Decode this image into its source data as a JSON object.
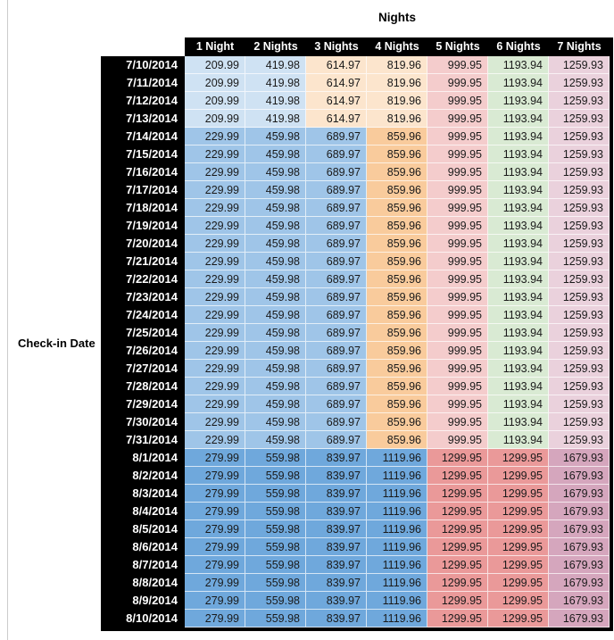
{
  "title": "Nights",
  "row_axis_label": "Check-in Date",
  "chart_data": {
    "type": "heatmap",
    "title": "Nights",
    "xlabel": "Nights",
    "ylabel": "Check-in Date",
    "legend": "none",
    "columns": [
      "1 Night",
      "2 Nights",
      "3 Nights",
      "4 Nights",
      "5 Nights",
      "6 Nights",
      "7 Nights"
    ],
    "rows": [
      {
        "date": "7/10/2014",
        "band": 0,
        "values": [
          209.99,
          419.98,
          614.97,
          819.96,
          999.95,
          1193.94,
          1259.93
        ]
      },
      {
        "date": "7/11/2014",
        "band": 0,
        "values": [
          209.99,
          419.98,
          614.97,
          819.96,
          999.95,
          1193.94,
          1259.93
        ]
      },
      {
        "date": "7/12/2014",
        "band": 0,
        "values": [
          209.99,
          419.98,
          614.97,
          819.96,
          999.95,
          1193.94,
          1259.93
        ]
      },
      {
        "date": "7/13/2014",
        "band": 0,
        "values": [
          209.99,
          419.98,
          614.97,
          819.96,
          999.95,
          1193.94,
          1259.93
        ]
      },
      {
        "date": "7/14/2014",
        "band": 1,
        "values": [
          229.99,
          459.98,
          689.97,
          859.96,
          999.95,
          1193.94,
          1259.93
        ]
      },
      {
        "date": "7/15/2014",
        "band": 1,
        "values": [
          229.99,
          459.98,
          689.97,
          859.96,
          999.95,
          1193.94,
          1259.93
        ]
      },
      {
        "date": "7/16/2014",
        "band": 1,
        "values": [
          229.99,
          459.98,
          689.97,
          859.96,
          999.95,
          1193.94,
          1259.93
        ]
      },
      {
        "date": "7/17/2014",
        "band": 1,
        "values": [
          229.99,
          459.98,
          689.97,
          859.96,
          999.95,
          1193.94,
          1259.93
        ]
      },
      {
        "date": "7/18/2014",
        "band": 1,
        "values": [
          229.99,
          459.98,
          689.97,
          859.96,
          999.95,
          1193.94,
          1259.93
        ]
      },
      {
        "date": "7/19/2014",
        "band": 1,
        "values": [
          229.99,
          459.98,
          689.97,
          859.96,
          999.95,
          1193.94,
          1259.93
        ]
      },
      {
        "date": "7/20/2014",
        "band": 1,
        "values": [
          229.99,
          459.98,
          689.97,
          859.96,
          999.95,
          1193.94,
          1259.93
        ]
      },
      {
        "date": "7/21/2014",
        "band": 1,
        "values": [
          229.99,
          459.98,
          689.97,
          859.96,
          999.95,
          1193.94,
          1259.93
        ]
      },
      {
        "date": "7/22/2014",
        "band": 1,
        "values": [
          229.99,
          459.98,
          689.97,
          859.96,
          999.95,
          1193.94,
          1259.93
        ]
      },
      {
        "date": "7/23/2014",
        "band": 1,
        "values": [
          229.99,
          459.98,
          689.97,
          859.96,
          999.95,
          1193.94,
          1259.93
        ]
      },
      {
        "date": "7/24/2014",
        "band": 1,
        "values": [
          229.99,
          459.98,
          689.97,
          859.96,
          999.95,
          1193.94,
          1259.93
        ]
      },
      {
        "date": "7/25/2014",
        "band": 1,
        "values": [
          229.99,
          459.98,
          689.97,
          859.96,
          999.95,
          1193.94,
          1259.93
        ]
      },
      {
        "date": "7/26/2014",
        "band": 1,
        "values": [
          229.99,
          459.98,
          689.97,
          859.96,
          999.95,
          1193.94,
          1259.93
        ]
      },
      {
        "date": "7/27/2014",
        "band": 1,
        "values": [
          229.99,
          459.98,
          689.97,
          859.96,
          999.95,
          1193.94,
          1259.93
        ]
      },
      {
        "date": "7/28/2014",
        "band": 1,
        "values": [
          229.99,
          459.98,
          689.97,
          859.96,
          999.95,
          1193.94,
          1259.93
        ]
      },
      {
        "date": "7/29/2014",
        "band": 1,
        "values": [
          229.99,
          459.98,
          689.97,
          859.96,
          999.95,
          1193.94,
          1259.93
        ]
      },
      {
        "date": "7/30/2014",
        "band": 1,
        "values": [
          229.99,
          459.98,
          689.97,
          859.96,
          999.95,
          1193.94,
          1259.93
        ]
      },
      {
        "date": "7/31/2014",
        "band": 1,
        "values": [
          229.99,
          459.98,
          689.97,
          859.96,
          999.95,
          1193.94,
          1259.93
        ]
      },
      {
        "date": "8/1/2014",
        "band": 2,
        "values": [
          279.99,
          559.98,
          839.97,
          1119.96,
          1299.95,
          1299.95,
          1679.93
        ]
      },
      {
        "date": "8/2/2014",
        "band": 2,
        "values": [
          279.99,
          559.98,
          839.97,
          1119.96,
          1299.95,
          1299.95,
          1679.93
        ]
      },
      {
        "date": "8/3/2014",
        "band": 2,
        "values": [
          279.99,
          559.98,
          839.97,
          1119.96,
          1299.95,
          1299.95,
          1679.93
        ]
      },
      {
        "date": "8/4/2014",
        "band": 2,
        "values": [
          279.99,
          559.98,
          839.97,
          1119.96,
          1299.95,
          1299.95,
          1679.93
        ]
      },
      {
        "date": "8/5/2014",
        "band": 2,
        "values": [
          279.99,
          559.98,
          839.97,
          1119.96,
          1299.95,
          1299.95,
          1679.93
        ]
      },
      {
        "date": "8/6/2014",
        "band": 2,
        "values": [
          279.99,
          559.98,
          839.97,
          1119.96,
          1299.95,
          1299.95,
          1679.93
        ]
      },
      {
        "date": "8/7/2014",
        "band": 2,
        "values": [
          279.99,
          559.98,
          839.97,
          1119.96,
          1299.95,
          1299.95,
          1679.93
        ]
      },
      {
        "date": "8/8/2014",
        "band": 2,
        "values": [
          279.99,
          559.98,
          839.97,
          1119.96,
          1299.95,
          1299.95,
          1679.93
        ]
      },
      {
        "date": "8/9/2014",
        "band": 2,
        "values": [
          279.99,
          559.98,
          839.97,
          1119.96,
          1299.95,
          1299.95,
          1679.93
        ]
      },
      {
        "date": "8/10/2014",
        "band": 2,
        "values": [
          279.99,
          559.98,
          839.97,
          1119.96,
          1299.95,
          1299.95,
          1679.93
        ]
      }
    ],
    "band_palettes": [
      [
        "#CFE2F3",
        "#CFE2F3",
        "#FCE5CD",
        "#FCE5CD",
        "#F4CCCC",
        "#D9EAD3",
        "#EAD1DC"
      ],
      [
        "#9FC5E8",
        "#9FC5E8",
        "#9FC5E8",
        "#F9CB9C",
        "#F4CCCC",
        "#D9EAD3",
        "#EAD1DC"
      ],
      [
        "#6FA8DC",
        "#6FA8DC",
        "#6FA8DC",
        "#6FA8DC",
        "#EA9999",
        "#EA9999",
        "#D5A6BD"
      ]
    ],
    "styles": {
      "header_bg": "#000000",
      "header_text": "#FFFFFF",
      "cell_text": "#1A1A1A",
      "table_border": "#000000",
      "page_left_rule": "#CCCCCC"
    }
  }
}
